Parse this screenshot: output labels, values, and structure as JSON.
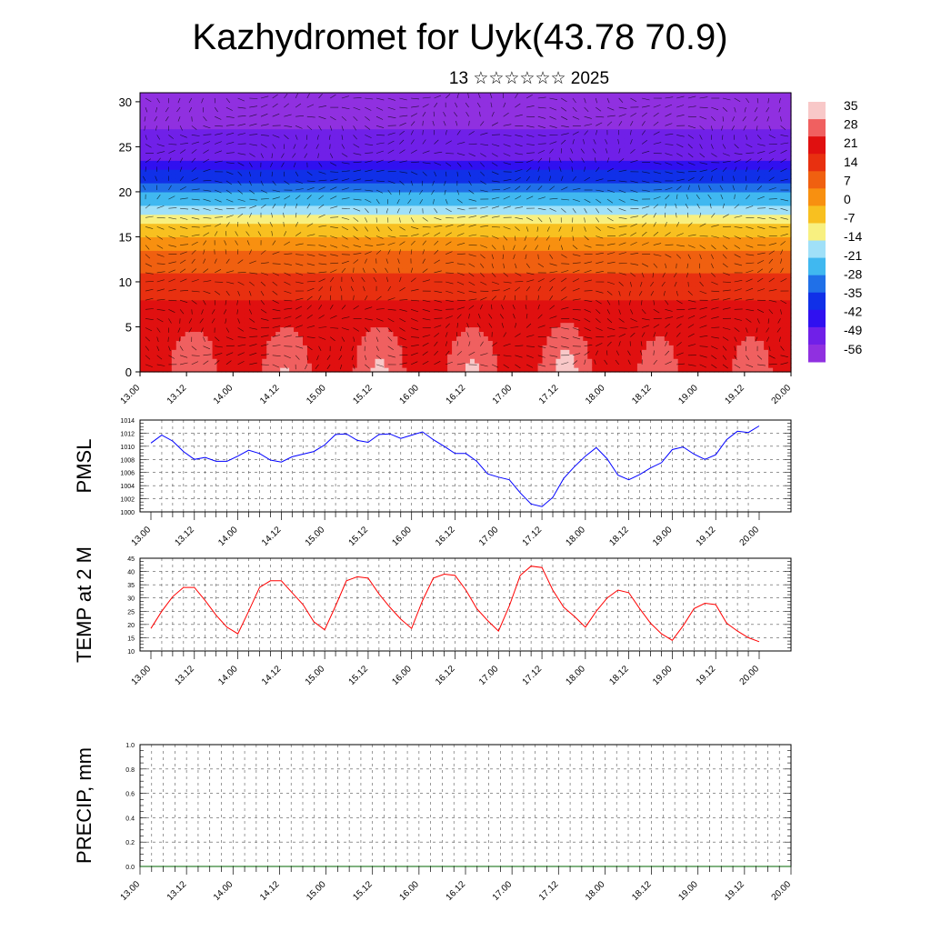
{
  "title": "Kazhydromet for Uyk(43.78 70.9)",
  "subtitle": "13 ☆☆☆☆☆☆ 2025",
  "time_ticks": [
    "13.00",
    "13.12",
    "14.00",
    "14.12",
    "15.00",
    "15.12",
    "16.00",
    "16.12",
    "17.00",
    "17.12",
    "18.00",
    "18.12",
    "19.00",
    "19.12",
    "20.00"
  ],
  "colors": {
    "pmsl_line": "#0000ff",
    "temp_line": "#ff0000",
    "precip_line": "#006400",
    "grid": "#000000"
  },
  "chart_data": [
    {
      "type": "heatmap",
      "title": "",
      "ylim": [
        0,
        31
      ],
      "y_ticks": [
        0,
        5,
        10,
        15,
        20,
        25,
        30
      ],
      "x": "time_ticks",
      "overlay": "wind vectors",
      "colorbar_labels": [
        "35",
        "28",
        "21",
        "14",
        "7",
        "0",
        "-7",
        "-14",
        "-21",
        "-28",
        "-35",
        "-42",
        "-49",
        "-56"
      ],
      "colorbar_colors": [
        "#f8c8c8",
        "#f06060",
        "#e01010",
        "#e83010",
        "#f06010",
        "#f89010",
        "#f8c020",
        "#f8f080",
        "#a0e0f8",
        "#40b8f0",
        "#2070e8",
        "#1030e8",
        "#3010f0",
        "#7020e8",
        "#9030e0"
      ],
      "profile": [
        {
          "h": 0,
          "t": 26
        },
        {
          "h": 3,
          "t": 24
        },
        {
          "h": 6,
          "t": 20
        },
        {
          "h": 9,
          "t": 15
        },
        {
          "h": 12,
          "t": 7
        },
        {
          "h": 14,
          "t": 1
        },
        {
          "h": 16,
          "t": -8
        },
        {
          "h": 18,
          "t": -20
        },
        {
          "h": 20,
          "t": -32
        },
        {
          "h": 22,
          "t": -43
        },
        {
          "h": 24,
          "t": -53
        },
        {
          "h": 26,
          "t": -56
        },
        {
          "h": 28,
          "t": -60
        },
        {
          "h": 31,
          "t": -63
        }
      ],
      "diurnal_amplitude": [
        8,
        9,
        10,
        10,
        12,
        5,
        5
      ]
    },
    {
      "type": "line",
      "ylabel": "PMSL",
      "ylim": [
        1000,
        1014
      ],
      "y_ticks": [
        1000,
        1002,
        1004,
        1006,
        1008,
        1010,
        1012,
        1014
      ],
      "x_step_hours": 3,
      "series": [
        {
          "values": [
            1010.5,
            1011.7,
            1010.8,
            1009.2,
            1008.0,
            1008.3,
            1007.7,
            1007.7,
            1008.5,
            1009.4,
            1008.9,
            1007.9,
            1007.6,
            1008.4,
            1008.8,
            1009.2,
            1010.2,
            1011.8,
            1011.9,
            1010.9,
            1010.6,
            1011.8,
            1011.9,
            1011.2,
            1011.7,
            1012.2,
            1011.0,
            1010.0,
            1008.9,
            1008.9,
            1007.7,
            1005.8,
            1005.3,
            1004.9,
            1002.9,
            1001.2,
            1000.8,
            1002.2,
            1005.1,
            1006.9,
            1008.5,
            1009.8,
            1008.1,
            1005.6,
            1004.9,
            1005.7,
            1006.7,
            1007.5,
            1009.5,
            1009.9,
            1008.8,
            1008.0,
            1008.7,
            1011.0,
            1012.3,
            1012.1,
            1013.1
          ]
        }
      ]
    },
    {
      "type": "line",
      "ylabel": "TEMP at 2 M",
      "ylim": [
        10,
        45
      ],
      "y_ticks": [
        10,
        15,
        20,
        25,
        30,
        35,
        40,
        45
      ],
      "x_step_hours": 3,
      "series": [
        {
          "values": [
            18.5,
            25,
            30.5,
            34,
            34,
            29,
            23.5,
            19,
            16.5,
            25,
            34,
            36.5,
            36.5,
            32,
            27.5,
            21,
            18,
            27,
            36.5,
            38,
            37.5,
            31.5,
            26.5,
            22,
            18.5,
            29,
            37.5,
            39,
            38.5,
            33,
            26,
            21.5,
            17.5,
            27,
            38.5,
            42,
            41.5,
            33,
            26.5,
            23,
            19,
            25,
            30,
            33,
            32,
            26,
            20.5,
            16.5,
            14,
            19.5,
            26,
            28,
            27.5,
            20.5,
            17.5,
            15,
            13.5
          ]
        }
      ]
    },
    {
      "type": "line",
      "ylabel": "PRECIP, mm",
      "ylim": [
        0,
        1
      ],
      "y_ticks": [
        "0.0",
        "0.2",
        "0.4",
        "0.6",
        "0.8",
        "1.0"
      ],
      "x_step_hours": 3,
      "series": [
        {
          "values": [
            0,
            0,
            0,
            0,
            0,
            0,
            0,
            0,
            0,
            0,
            0,
            0,
            0,
            0,
            0,
            0,
            0,
            0,
            0,
            0,
            0,
            0,
            0,
            0,
            0,
            0,
            0,
            0,
            0,
            0,
            0,
            0,
            0,
            0,
            0,
            0,
            0,
            0,
            0,
            0,
            0,
            0,
            0,
            0,
            0,
            0,
            0,
            0,
            0,
            0,
            0,
            0,
            0,
            0,
            0,
            0,
            0
          ]
        }
      ]
    }
  ]
}
